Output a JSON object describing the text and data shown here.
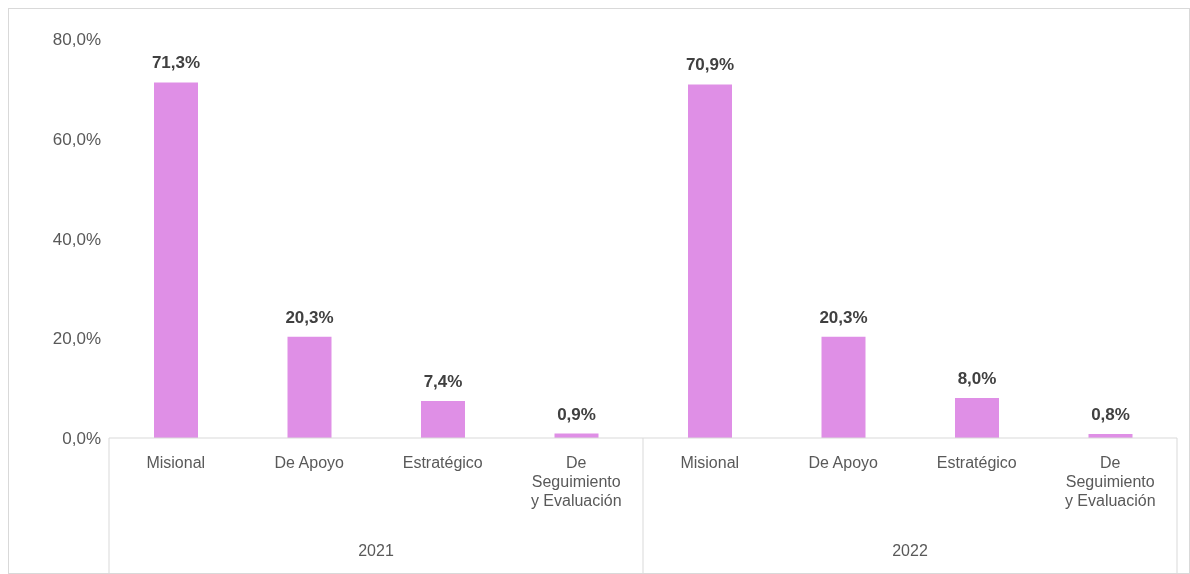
{
  "chart_data": {
    "type": "bar",
    "categories": [
      "Misional",
      "De Apoyo",
      "Estratégico",
      "De Seguimiento y Evaluación",
      "Misional",
      "De Apoyo",
      "Estratégico",
      "De Seguimiento y Evaluación"
    ],
    "values": [
      71.3,
      20.3,
      7.4,
      0.9,
      70.9,
      20.3,
      8.0,
      0.8
    ],
    "value_labels": [
      "71,3%",
      "20,3%",
      "7,4%",
      "0,9%",
      "70,9%",
      "20,3%",
      "8,0%",
      "0,8%"
    ],
    "color": "#df8fe6",
    "ylim": [
      0,
      80
    ],
    "yticks": [
      {
        "value": 0,
        "label": "0,0%"
      },
      {
        "value": 20,
        "label": "20,0%"
      },
      {
        "value": 40,
        "label": "40,0%"
      },
      {
        "value": 60,
        "label": "60,0%"
      },
      {
        "value": 80,
        "label": "80,0%"
      }
    ],
    "grid": false,
    "legend": false,
    "annotations": [
      "2021",
      "2022"
    ]
  }
}
